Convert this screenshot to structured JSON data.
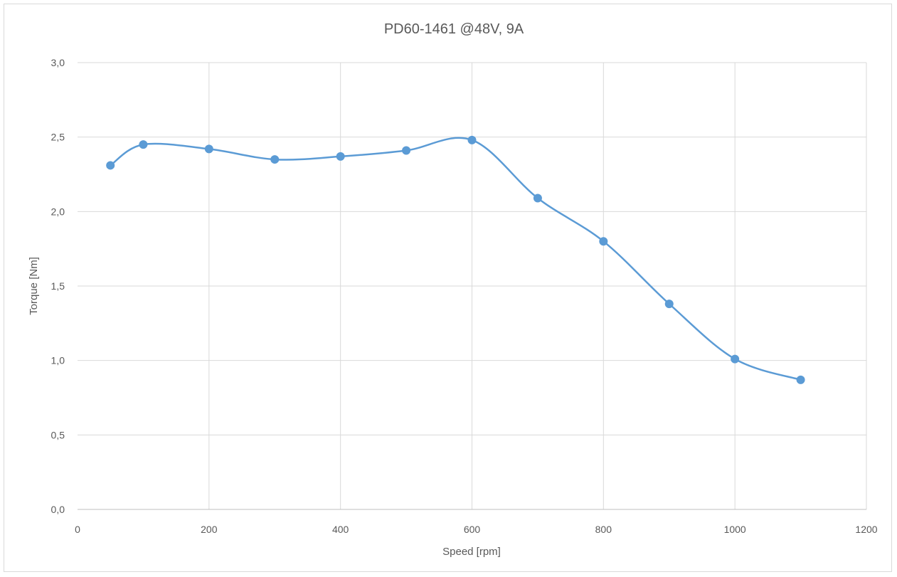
{
  "chart_data": {
    "type": "scatter",
    "title": "PD60-1461 @48V, 9A",
    "xlabel": "Speed [rpm]",
    "ylabel": "Torque [Nm]",
    "xlim": [
      0,
      1200
    ],
    "ylim": [
      0,
      3
    ],
    "x_ticks": [
      "0",
      "200",
      "400",
      "600",
      "800",
      "1000",
      "1200"
    ],
    "y_ticks": [
      "0,0",
      "0,5",
      "1,0",
      "1,5",
      "2,0",
      "2,5",
      "3,0"
    ],
    "grid": true,
    "legend": "none",
    "line_style": "smoothed",
    "series": [
      {
        "color": "#5b9bd5",
        "x": [
          50,
          100,
          200,
          300,
          400,
          500,
          600,
          700,
          800,
          900,
          1000,
          1100
        ],
        "y": [
          2.31,
          2.45,
          2.42,
          2.35,
          2.37,
          2.41,
          2.48,
          2.09,
          1.8,
          1.38,
          1.01,
          0.87
        ]
      }
    ]
  },
  "colors": {
    "grid": "#d9d9d9",
    "axis": "#bfbfbf",
    "text": "#595959",
    "series": "#5b9bd5"
  }
}
